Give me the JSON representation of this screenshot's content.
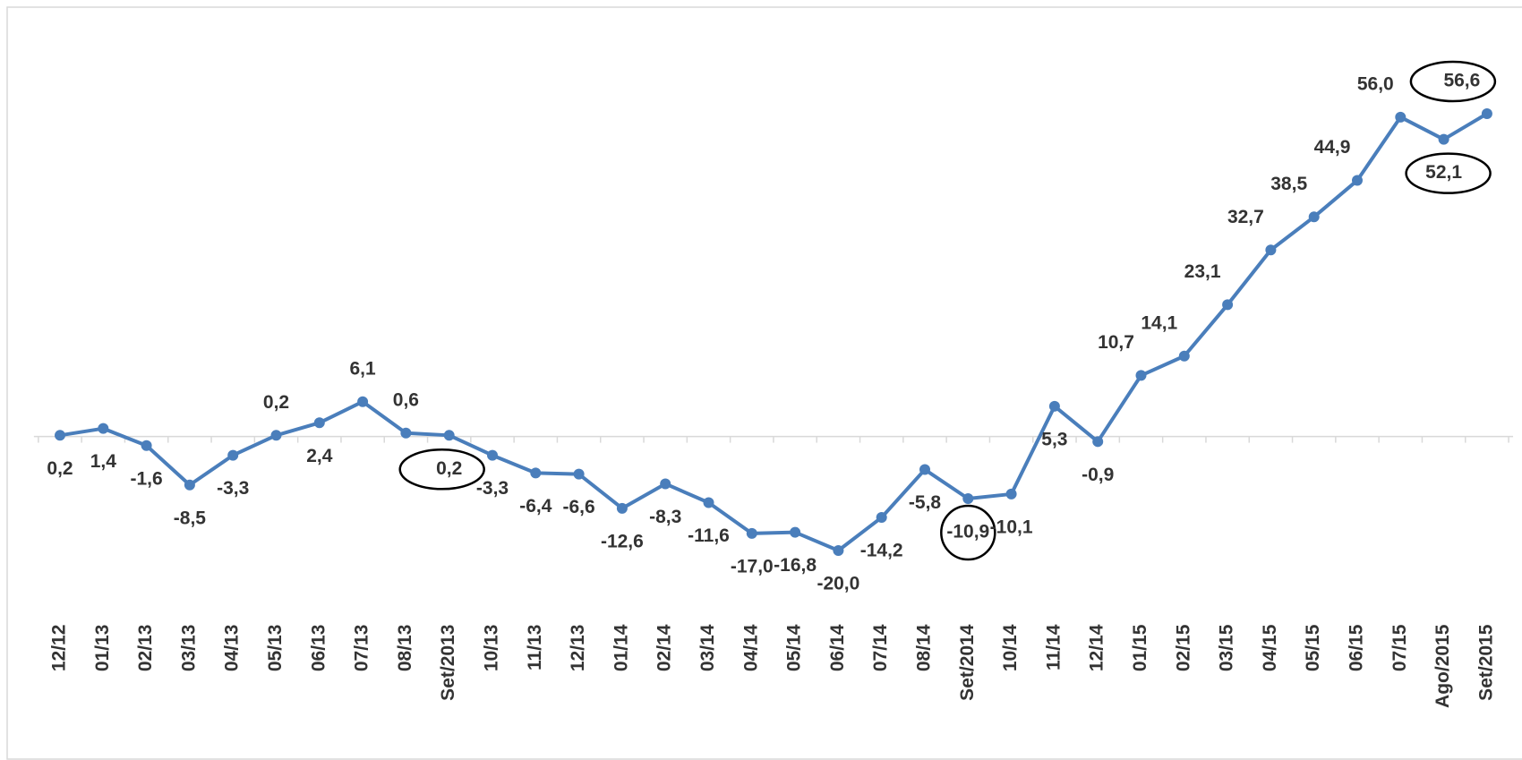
{
  "chart_data": {
    "type": "line",
    "categories": [
      "12/12",
      "01/13",
      "02/13",
      "03/13",
      "04/13",
      "05/13",
      "06/13",
      "07/13",
      "08/13",
      "Set/2013",
      "10/13",
      "11/13",
      "12/13",
      "01/14",
      "02/14",
      "03/14",
      "04/14",
      "05/14",
      "06/14",
      "07/14",
      "08/14",
      "Set/2014",
      "10/14",
      "11/14",
      "12/14",
      "01/15",
      "02/15",
      "03/15",
      "04/15",
      "05/15",
      "06/15",
      "07/15",
      "Ago/2015",
      "Set/2015"
    ],
    "values": [
      0.2,
      1.4,
      -1.6,
      -8.5,
      -3.3,
      0.2,
      2.4,
      6.1,
      0.6,
      0.2,
      -3.3,
      -6.4,
      -6.6,
      -12.6,
      -8.3,
      -11.6,
      -17.0,
      -16.8,
      -20.0,
      -14.2,
      -5.8,
      -10.9,
      -10.1,
      5.3,
      -0.9,
      10.7,
      14.1,
      23.1,
      32.7,
      38.5,
      44.9,
      56.0,
      52.1,
      56.6
    ],
    "value_labels": [
      "0,2",
      "1,4",
      "-1,6",
      "-8,5",
      "-3,3",
      "0,2",
      "2,4",
      "6,1",
      "0,6",
      "0,2",
      "-3,3",
      "-6,4",
      "-6,6",
      "-12,6",
      "-8,3",
      "-11,6",
      "-17,0",
      "-16,8",
      "-20,0",
      "-14,2",
      "-5,8",
      "-10,9",
      "-10,1",
      "5,3",
      "-0,9",
      "10,7",
      "14,1",
      "23,1",
      "32,7",
      "38,5",
      "44,9",
      "56,0",
      "52,1",
      "56,6"
    ],
    "color": "#4a7ebb"
  }
}
